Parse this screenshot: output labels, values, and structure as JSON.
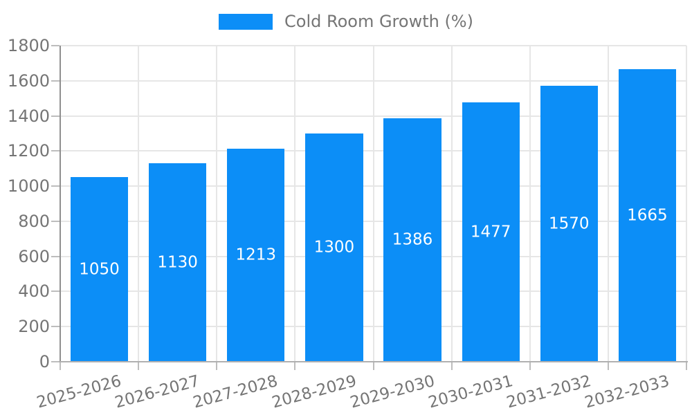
{
  "legend": {
    "label": "Cold Room Growth (%)"
  },
  "colors": {
    "bar": "#0c8ef7",
    "bar_label": "#ffffff",
    "grid": "#e6e6e6",
    "axis_y": "#8f8f8f",
    "axis_x": "#b0b0b0",
    "tick": "#bdbdbd",
    "label_text": "#757575"
  },
  "chart_data": {
    "type": "bar",
    "title": "",
    "xlabel": "",
    "ylabel": "",
    "legend_label": "Cold Room Growth (%)",
    "legend_position": "top",
    "grid": true,
    "categories": [
      "2025-2026",
      "2026-2027",
      "2027-2028",
      "2028-2029",
      "2029-2030",
      "2030-2031",
      "2031-2032",
      "2032-2033"
    ],
    "values": [
      1050,
      1130,
      1213,
      1300,
      1386,
      1477,
      1570,
      1665
    ],
    "bar_labels": [
      "1050",
      "1130",
      "1213",
      "1300",
      "1386",
      "1477",
      "1570",
      "1665"
    ],
    "ylim": [
      0,
      1800
    ],
    "yticks": [
      0,
      200,
      400,
      600,
      800,
      1000,
      1200,
      1400,
      1600,
      1800
    ]
  }
}
